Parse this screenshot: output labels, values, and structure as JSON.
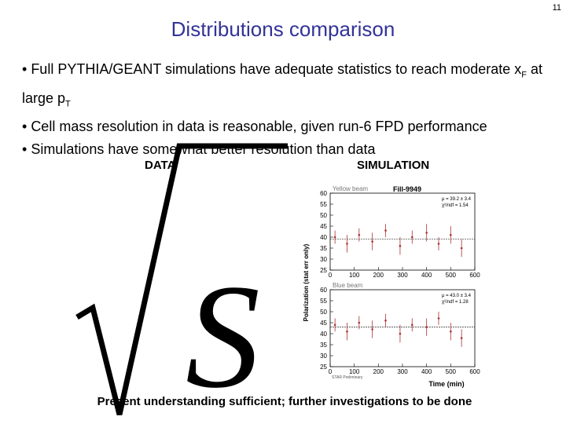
{
  "slide_number": "11",
  "title": "Distributions comparison",
  "bullets": [
    [
      "Full PYTHIA/GEANT simulations have adequate statistics to reach moderate x",
      {
        "sub": "F"
      },
      " at large p",
      {
        "sub": "T"
      }
    ],
    [
      "Cell mass resolution in data is reasonable, given run-6 FPD performance"
    ],
    [
      "Simulations have somewhat better resolution than data"
    ]
  ],
  "labels": {
    "data": "DATA",
    "simulation": "SIMULATION"
  },
  "figure": {
    "title": "Fill-9949",
    "y_label": "Polarization (stat err only)",
    "x_label": "Time (min)",
    "credit": "STAR Preliminary",
    "xlim": [
      0,
      600
    ],
    "xticks": [
      0,
      100,
      200,
      300,
      400,
      500,
      600
    ],
    "ylim": [
      25,
      60
    ],
    "yticks": [
      25,
      30,
      35,
      40,
      45,
      50,
      55,
      60
    ],
    "panels": [
      {
        "name": "Yellow beam",
        "stats": [
          "μ = 39.2 ± 3.4",
          "χ²/ndf = 1.54"
        ],
        "fit": 39.2,
        "x": [
          20,
          70,
          120,
          175,
          230,
          290,
          340,
          400,
          450,
          500,
          545
        ],
        "values": [
          40,
          37,
          41,
          38,
          43,
          36,
          40,
          42,
          37,
          41,
          35
        ],
        "errors": [
          3,
          4,
          3,
          4,
          3,
          4,
          3,
          4,
          3,
          4,
          4
        ]
      },
      {
        "name": "Blue beam",
        "stats": [
          "μ = 43.0 ± 3.4",
          "χ²/ndf = 1.28"
        ],
        "fit": 43.0,
        "x": [
          20,
          70,
          120,
          175,
          230,
          290,
          340,
          400,
          450,
          500,
          545
        ],
        "values": [
          44,
          41,
          45,
          42,
          46,
          40,
          44,
          43,
          47,
          41,
          38
        ],
        "errors": [
          3,
          4,
          3,
          4,
          3,
          4,
          3,
          4,
          3,
          4,
          4
        ]
      }
    ]
  },
  "overlay_letter": "S",
  "footer": "Present understanding sufficient; further investigations to be done"
}
